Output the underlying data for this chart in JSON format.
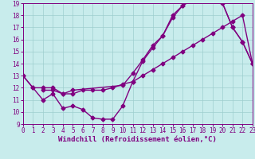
{
  "xlabel": "Windchill (Refroidissement éolien,°C)",
  "ylabel": "",
  "xlim": [
    0,
    23
  ],
  "ylim": [
    9,
    19
  ],
  "xticks": [
    0,
    1,
    2,
    3,
    4,
    5,
    6,
    7,
    8,
    9,
    10,
    11,
    12,
    13,
    14,
    15,
    16,
    17,
    18,
    19,
    20,
    21,
    22,
    23
  ],
  "yticks": [
    9,
    10,
    11,
    12,
    13,
    14,
    15,
    16,
    17,
    18,
    19
  ],
  "bg_color": "#c8ecec",
  "line_color": "#800080",
  "grid_color": "#9ecece",
  "curve1_x": [
    0,
    1,
    2,
    3,
    4,
    5,
    6,
    7,
    8,
    9,
    10,
    11,
    12,
    13,
    14,
    15,
    16,
    17,
    18,
    19,
    20,
    21,
    22,
    23
  ],
  "curve1_y": [
    13,
    12,
    11,
    11.5,
    10.3,
    10.5,
    10.2,
    9.5,
    9.4,
    9.4,
    10.5,
    12.5,
    14.2,
    15.3,
    16.3,
    18.0,
    18.8,
    19.3,
    19.3,
    19.3,
    19.0,
    17.0,
    15.8,
    14.0
  ],
  "curve2_x": [
    2,
    3,
    4,
    5,
    10,
    11,
    12,
    13,
    14,
    15,
    16,
    17,
    18,
    19,
    20,
    21,
    22,
    23
  ],
  "curve2_y": [
    11.8,
    11.8,
    11.5,
    11.8,
    12.2,
    13.2,
    14.3,
    15.5,
    16.3,
    17.8,
    18.8,
    19.3,
    19.3,
    19.3,
    19.0,
    17.0,
    15.8,
    14.0
  ],
  "curve3_x": [
    0,
    1,
    2,
    3,
    4,
    5,
    6,
    7,
    8,
    9,
    10,
    11,
    12,
    13,
    14,
    15,
    16,
    17,
    18,
    19,
    20,
    21,
    22,
    23
  ],
  "curve3_y": [
    13.0,
    12.0,
    12.0,
    12.0,
    11.5,
    11.5,
    11.8,
    11.8,
    11.8,
    12.0,
    12.3,
    12.5,
    13.0,
    13.5,
    14.0,
    14.5,
    15.0,
    15.5,
    16.0,
    16.5,
    17.0,
    17.5,
    18.0,
    14.0
  ],
  "marker": "D",
  "markersize": 2.5,
  "linewidth": 1.0,
  "tick_fontsize": 5.5,
  "label_fontsize": 6.5
}
